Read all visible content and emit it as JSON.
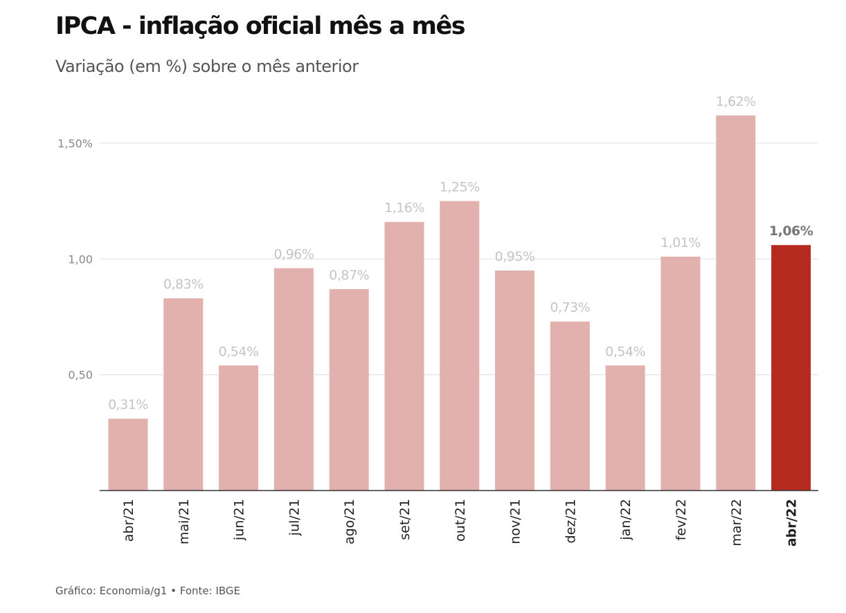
{
  "title": "IPCA - inflação oficial mês a mês",
  "subtitle": "Variação (em %) sobre o mês anterior",
  "source": "Gráfico: Economia/g1 • Fonte: IBGE",
  "chart_data": {
    "type": "bar",
    "categories": [
      "abr/21",
      "mai/21",
      "jun/21",
      "jul/21",
      "ago/21",
      "set/21",
      "out/21",
      "nov/21",
      "dez/21",
      "jan/22",
      "fev/22",
      "mar/22",
      "abr/22"
    ],
    "values": [
      0.31,
      0.83,
      0.54,
      0.96,
      0.87,
      1.16,
      1.25,
      0.95,
      0.73,
      0.54,
      1.01,
      1.62,
      1.06
    ],
    "data_labels": [
      "0,31%",
      "0,83%",
      "0,54%",
      "0,96%",
      "0,87%",
      "1,16%",
      "1,25%",
      "0,95%",
      "0,73%",
      "0,54%",
      "1,01%",
      "1,62%",
      "1,06%"
    ],
    "yticks": [
      0.5,
      1.0,
      1.5
    ],
    "ytick_labels": [
      "0,50",
      "1,00",
      "1,50%"
    ],
    "ylim": [
      0,
      1.6
    ],
    "grid": true,
    "highlight_index": 12,
    "colors": {
      "bar": "#e2b0ad",
      "highlight": "#b52b20",
      "label": "#c4c4c4",
      "highlight_label": "#777777",
      "grid": "#e4e4e4",
      "axis": "#333333",
      "tick": "#888888"
    }
  }
}
